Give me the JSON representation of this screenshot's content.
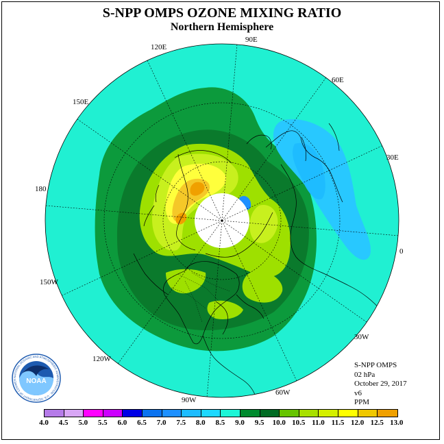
{
  "title": "S-NPP OMPS OZONE MIXING RATIO",
  "subtitle": "Northern Hemisphere",
  "longitude_labels": [
    "90E",
    "60E",
    "30E",
    "0",
    "30W",
    "60W",
    "90W",
    "120W",
    "150W",
    "180",
    "150E",
    "120E"
  ],
  "info": {
    "instrument": "S-NPP OMPS",
    "pressure": "02 hPa",
    "date": "October 29, 2017",
    "version": "v6",
    "units": "PPM"
  },
  "colorbar": {
    "colors": [
      "#b57be8",
      "#d8a6f5",
      "#ff00ff",
      "#cc00ff",
      "#0000e6",
      "#0b73f0",
      "#1e90ff",
      "#1ebcff",
      "#1ed8ff",
      "#1ef5d7",
      "#008a2e",
      "#006b23",
      "#66c400",
      "#a8e000",
      "#d4f000",
      "#ffff00",
      "#f0c800",
      "#f0a000",
      "#ff7800",
      "#ff0000",
      "#c80000",
      "#8b4513"
    ],
    "labels": [
      "4.0",
      "4.5",
      "5.0",
      "5.5",
      "6.0",
      "6.5",
      "7.0",
      "7.5",
      "8.0",
      "8.5",
      "9.0",
      "9.5",
      "10.0",
      "10.5",
      "11.0",
      "11.5",
      "12.0",
      "12.5",
      "13.0"
    ]
  },
  "field_colors": {
    "background": "#20f0d2",
    "band_8_5": "#0c9a3c",
    "band_9_0": "#0a7a2c",
    "band_9_5": "#9ee000",
    "band_10_0": "#c8f01e",
    "band_10_5": "#ffff3c",
    "band_11_0": "#f5c828",
    "band_11_5": "#f0a000",
    "low_7_5": "#28c8ff",
    "low_7_0": "#1e90ff",
    "polar_night": "#ffffff"
  },
  "logo": {
    "text": "NOAA",
    "ring": "NATIONAL OCEANIC AND ATMOSPHERIC ADMINISTRATION · U.S. DEPARTMENT OF COMMERCE"
  }
}
